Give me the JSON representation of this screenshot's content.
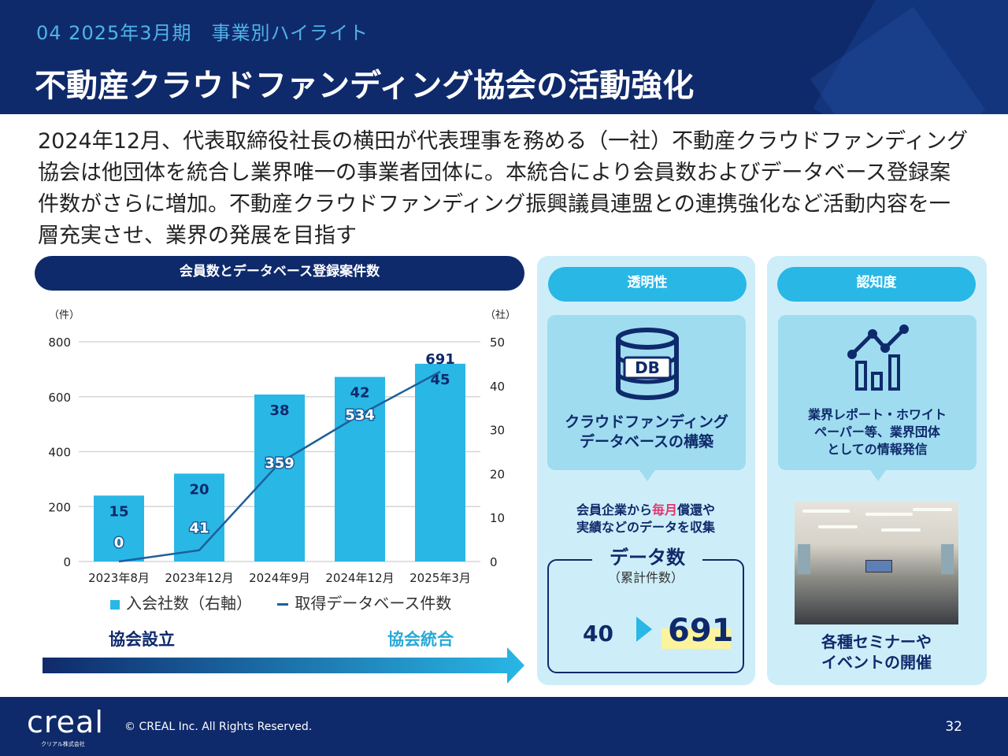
{
  "header": {
    "section_label": "04 2025年3月期　事業別ハイライト",
    "title": "不動産クラウドファンディング協会の活動強化"
  },
  "lead_text": "2024年12月、代表取締役社長の横田が代表理事を務める（一社）不動産クラウドファンディング協会は他団体を統合し業界唯一の事業者団体に。本統合により会員数およびデータベース登録案件数がさらに増加。不動産クラウドファンディング振興議員連盟との連携強化など活動内容を一層充実させ、業界の発展を目指す",
  "chart_section": {
    "title": "会員数とデータベース登録案件数"
  },
  "chart_data": {
    "type": "bar",
    "categories": [
      "2023年8月",
      "2023年12月",
      "2024年9月",
      "2024年12月",
      "2025年3月"
    ],
    "series": [
      {
        "name": "入会社数（右軸）",
        "type": "bar",
        "axis": "right",
        "values": [
          15,
          20,
          38,
          42,
          45
        ],
        "color": "#29b7e6"
      },
      {
        "name": "取得データベース件数",
        "type": "line",
        "axis": "left",
        "values": [
          0,
          41,
          359,
          534,
          691
        ],
        "color": "#1f5f9a"
      }
    ],
    "y_left": {
      "unit": "（件）",
      "ticks": [
        "800",
        "600",
        "400",
        "200",
        "0"
      ],
      "range": [
        0,
        800
      ]
    },
    "y_right": {
      "unit": "（社）",
      "ticks": [
        "50",
        "40",
        "30",
        "20",
        "10",
        "0"
      ],
      "range": [
        0,
        50
      ]
    },
    "grid": true,
    "legend": "bottom"
  },
  "legend": {
    "bar_label": "入会社数（右軸）",
    "line_label": "取得データベース件数"
  },
  "timeline": {
    "start_label": "協会設立",
    "end_label": "協会統合"
  },
  "transparency": {
    "pill": "透明性",
    "icon_text": "DB",
    "box_line1": "クラウドファンディング",
    "box_line2": "データベースの構築",
    "collect_pre": "会員企業から",
    "collect_hl": "毎月",
    "collect_post": "償還や",
    "collect_line2": "実績などのデータを収集",
    "data_title": "データ数",
    "data_sub": "（累計件数）",
    "from_value": "40",
    "to_value": "691"
  },
  "awareness": {
    "pill": "認知度",
    "box_line1": "業界レポート・ホワイト",
    "box_line2": "ペーパー等、業界団体",
    "box_line3": "としての情報発信",
    "seminar_line1": "各種セミナーや",
    "seminar_line2": "イベントの開催"
  },
  "footer": {
    "logo": "creal",
    "logo_sub": "クリアル株式会社",
    "copyright": "© CREAL Inc. All Rights Reserved.",
    "page_number": "32"
  },
  "colors": {
    "navy": "#0f2a6b",
    "accent": "#29b7e6",
    "panel": "#cdeef8",
    "highlight": "#e2366f"
  }
}
